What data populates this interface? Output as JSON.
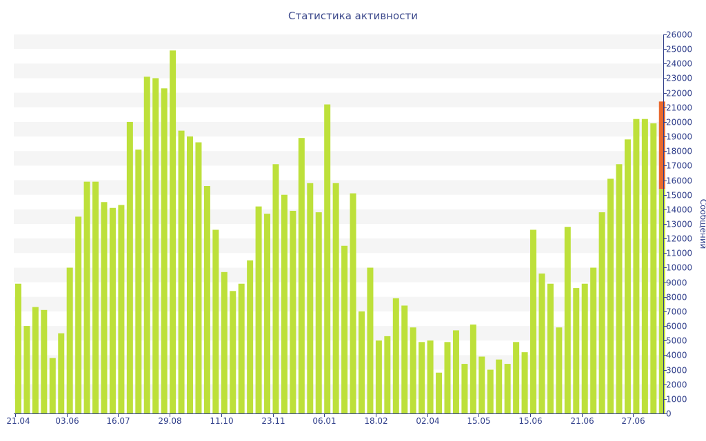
{
  "chart_data": {
    "type": "bar",
    "title": "Статистика активности",
    "ylabel": "Сообщений",
    "ylim": [
      0,
      26000
    ],
    "y_ticks": [
      0,
      1000,
      2000,
      3000,
      4000,
      5000,
      6000,
      7000,
      8000,
      9000,
      10000,
      11000,
      12000,
      13000,
      14000,
      15000,
      16000,
      17000,
      18000,
      19000,
      20000,
      21000,
      22000,
      23000,
      24000,
      25000,
      26000
    ],
    "y_axis_position": "right",
    "x_tick_labels": [
      {
        "label": "21.04",
        "index": 0
      },
      {
        "label": "03.06",
        "index": 6
      },
      {
        "label": "16.07",
        "index": 12
      },
      {
        "label": "29.08",
        "index": 18
      },
      {
        "label": "11.10",
        "index": 24
      },
      {
        "label": "23.11",
        "index": 30
      },
      {
        "label": "06.01",
        "index": 36
      },
      {
        "label": "18.02",
        "index": 42
      },
      {
        "label": "02.04",
        "index": 48
      },
      {
        "label": "15.05",
        "index": 54
      },
      {
        "label": "15.06",
        "index": 60
      },
      {
        "label": "21.06",
        "index": 66
      },
      {
        "label": "27.06",
        "index": 72
      }
    ],
    "grid": true,
    "colors": {
      "bar": "#bde03a",
      "highlight": "#e8692e",
      "axis": "#2f3e8a",
      "band": "#f5f5f5"
    },
    "series": [
      {
        "values": [
          8900,
          6000,
          7300,
          7100,
          3800,
          5500,
          10000,
          13500,
          15900,
          15900,
          14500,
          14100,
          14300,
          20000,
          18100,
          23100,
          23000,
          22300,
          24900,
          19400,
          19000,
          18600,
          15600,
          12600,
          9700,
          8400,
          8900,
          10500,
          14200,
          13700,
          17100,
          15000,
          13900,
          18900,
          15800,
          13800,
          21200,
          15800,
          11500,
          15100,
          7000,
          10000,
          5000,
          5300,
          7900,
          7400,
          5900,
          4900,
          5000,
          2800,
          4900,
          5700,
          3400,
          6100,
          3900,
          3000,
          3700,
          3400,
          4900,
          4200,
          12600,
          9600,
          8900,
          5900,
          12800,
          8600,
          8900,
          10000,
          13800,
          16100,
          17100,
          18800,
          20200,
          20200,
          19900,
          15400
        ]
      }
    ],
    "highlight": {
      "index": 75,
      "from": 15400,
      "to": 21400
    }
  }
}
